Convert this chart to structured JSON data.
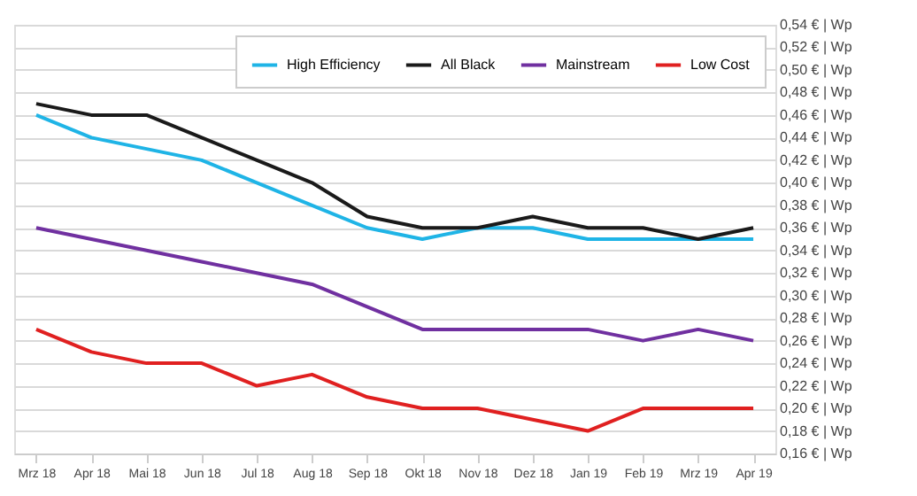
{
  "chart_data": {
    "type": "line",
    "categories": [
      "Mrz 18",
      "Apr 18",
      "Mai 18",
      "Jun 18",
      "Jul 18",
      "Aug 18",
      "Sep 18",
      "Okt 18",
      "Nov 18",
      "Dez 18",
      "Jan 19",
      "Feb 19",
      "Mrz 19",
      "Apr 19"
    ],
    "series": [
      {
        "name": "High Efficiency",
        "color": "#1fb4e6",
        "values": [
          0.46,
          0.44,
          0.43,
          0.42,
          0.4,
          0.38,
          0.36,
          0.35,
          0.36,
          0.36,
          0.35,
          0.35,
          0.35,
          0.35
        ]
      },
      {
        "name": "All Black",
        "color": "#1a1a1a",
        "values": [
          0.47,
          0.46,
          0.46,
          0.44,
          0.42,
          0.4,
          0.37,
          0.36,
          0.36,
          0.37,
          0.36,
          0.36,
          0.35,
          0.36
        ]
      },
      {
        "name": "Mainstream",
        "color": "#7030a0",
        "values": [
          0.36,
          0.35,
          0.34,
          0.33,
          0.32,
          0.31,
          0.29,
          0.27,
          0.27,
          0.27,
          0.27,
          0.26,
          0.27,
          0.26
        ]
      },
      {
        "name": "Low Cost",
        "color": "#e02020",
        "values": [
          0.27,
          0.25,
          0.24,
          0.24,
          0.22,
          0.23,
          0.21,
          0.2,
          0.2,
          0.19,
          0.18,
          0.2,
          0.2,
          0.2
        ]
      }
    ],
    "ylim": [
      0.16,
      0.54
    ],
    "yticks": [
      {
        "value": 0.16,
        "label": "0,16 € | Wp"
      },
      {
        "value": 0.18,
        "label": "0,18 € | Wp"
      },
      {
        "value": 0.2,
        "label": "0,20 € | Wp"
      },
      {
        "value": 0.22,
        "label": "0,22 € | Wp"
      },
      {
        "value": 0.24,
        "label": "0,24 € | Wp"
      },
      {
        "value": 0.26,
        "label": "0,26 € | Wp"
      },
      {
        "value": 0.28,
        "label": "0,28 € | Wp"
      },
      {
        "value": 0.3,
        "label": "0,30 € | Wp"
      },
      {
        "value": 0.32,
        "label": "0,32 € | Wp"
      },
      {
        "value": 0.34,
        "label": "0,34 € | Wp"
      },
      {
        "value": 0.36,
        "label": "0,36 € | Wp"
      },
      {
        "value": 0.38,
        "label": "0,38 € | Wp"
      },
      {
        "value": 0.4,
        "label": "0,40 € | Wp"
      },
      {
        "value": 0.42,
        "label": "0,42 € | Wp"
      },
      {
        "value": 0.44,
        "label": "0,44 € | Wp"
      },
      {
        "value": 0.46,
        "label": "0,46 € | Wp"
      },
      {
        "value": 0.48,
        "label": "0,48 € | Wp"
      },
      {
        "value": 0.5,
        "label": "0,50 € | Wp"
      },
      {
        "value": 0.52,
        "label": "0,52 € | Wp"
      },
      {
        "value": 0.54,
        "label": "0,54 € | Wp"
      }
    ],
    "grid": "y",
    "legend": "top right",
    "marker": "none",
    "line_style": "solid"
  }
}
